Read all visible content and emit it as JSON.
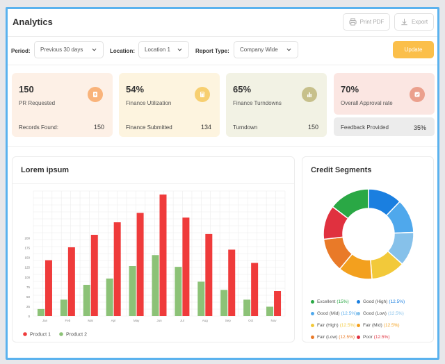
{
  "header": {
    "title": "Analytics",
    "print_label": "Print PDF",
    "export_label": "Export"
  },
  "filters": {
    "period_label": "Period:",
    "period_value": "Previous 30 days",
    "location_label": "Location:",
    "location_value": "Location 1",
    "report_label": "Report Type:",
    "report_value": "Company Wide",
    "update_label": "Update"
  },
  "stats": [
    {
      "value": "150",
      "label": "PR Requested",
      "foot_label": "Records Found:",
      "foot_value": "150",
      "bg": "#fdf0e6",
      "icon_bg": "#f9b37a",
      "icon": "upload-document-icon"
    },
    {
      "value": "54%",
      "label": "Finance Utilization",
      "foot_label": "Finance Submitted",
      "foot_value": "134",
      "bg": "#fdf4df",
      "icon_bg": "#f7cf70",
      "icon": "calculator-icon"
    },
    {
      "value": "65%",
      "label": "Finance Turndowns",
      "foot_label": "Turndown",
      "foot_value": "150",
      "bg": "#f2f2e4",
      "icon_bg": "#c7c08b",
      "icon": "bar-chart-icon"
    },
    {
      "value": "70%",
      "label": "Overall Approval rate",
      "foot_label": "Feedback Provided",
      "foot_value": "35%",
      "bg": "#fbe6e2",
      "icon_bg": "#eba08d",
      "icon": "approval-icon"
    }
  ],
  "bar_panel": {
    "title": "Lorem ipsum"
  },
  "chart_data": {
    "type": "bar",
    "categories": [
      "Jan",
      "Feb",
      "Mar",
      "Apr",
      "May",
      "Jun",
      "Jul",
      "Aug",
      "Sep",
      "Oct",
      "Nov"
    ],
    "series": [
      {
        "name": "Product 1",
        "color": "#ef3b3b",
        "values": [
          143,
          176,
          208,
          240,
          264,
          311,
          252,
          210,
          170,
          136,
          64
        ]
      },
      {
        "name": "Product 2",
        "color": "#8cc277",
        "values": [
          18,
          42,
          80,
          96,
          128,
          156,
          126,
          88,
          67,
          42,
          24
        ]
      }
    ],
    "yticks": [
      "0",
      "25",
      "50",
      "75",
      "100",
      "125",
      "150",
      "175",
      "200"
    ],
    "ylim": [
      0,
      320
    ],
    "grid": true,
    "legend": "bottom-left"
  },
  "donut_panel": {
    "title": "Credit Segments",
    "chart_data": {
      "type": "pie",
      "segments": [
        {
          "label": "Excellent",
          "pct": "(15%)",
          "value": 15,
          "color": "#2aa845"
        },
        {
          "label": "Good (High)",
          "pct": "(12.5%)",
          "value": 12.5,
          "color": "#1a7fe0"
        },
        {
          "label": "Good (Mid)",
          "pct": "(12.5%)",
          "value": 12.5,
          "color": "#4fa8ec"
        },
        {
          "label": "Good (Low)",
          "pct": "(12.5%)",
          "value": 12.5,
          "color": "#86c1ea"
        },
        {
          "label": "Fair (High)",
          "pct": "(12.5%)",
          "value": 12.5,
          "color": "#f2c93a"
        },
        {
          "label": "Fair (Mid)",
          "pct": "(12.5%)",
          "value": 12.5,
          "color": "#f3a01e"
        },
        {
          "label": "Fair (Low)",
          "pct": "(12.5%)",
          "value": 12.5,
          "color": "#e97a28"
        },
        {
          "label": "Poor",
          "pct": "(12.5%)",
          "value": 12.5,
          "color": "#e0313f"
        }
      ]
    }
  }
}
